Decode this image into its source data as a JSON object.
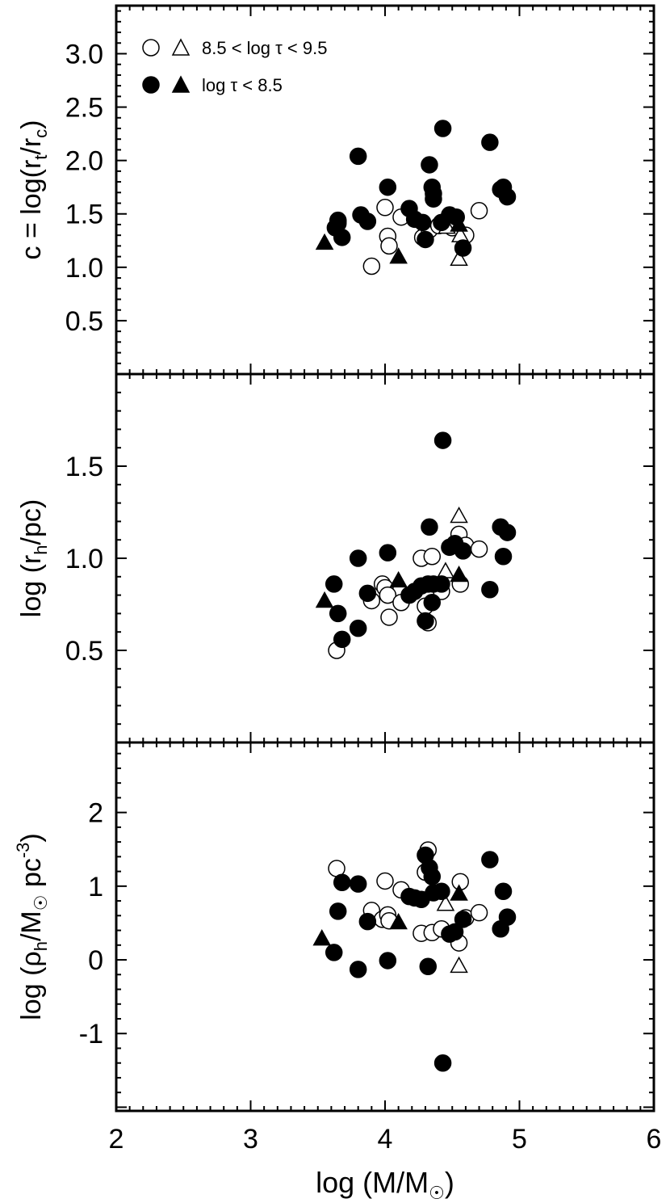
{
  "figure": {
    "xlabel": "log (M/M",
    "xlabel_sym": "☉",
    "xlabel_close": ")"
  },
  "legend": {
    "open_label": "8.5 < log τ < 9.5",
    "filled_label": "log τ < 8.5"
  },
  "chart_data": [
    {
      "type": "scatter",
      "panel": "top",
      "ylabel": "c = log(r_t/r_c)",
      "xlim": [
        2,
        6
      ],
      "ylim": [
        0,
        3.45
      ],
      "yticks": [
        0.5,
        1.0,
        1.5,
        2.0,
        2.5,
        3.0
      ],
      "ytick_labels": [
        "0.5",
        "1.0",
        "1.5",
        "2.0",
        "2.5",
        "3.0"
      ],
      "legend_position": "top-left",
      "series": [
        {
          "name": "8.5 < log τ < 9.5",
          "marker": "circle",
          "fill": "open",
          "points": [
            [
              3.65,
              1.43
            ],
            [
              3.9,
              1.01
            ],
            [
              4.0,
              1.56
            ],
            [
              4.02,
              1.29
            ],
            [
              4.03,
              1.2
            ],
            [
              4.12,
              1.47
            ],
            [
              4.28,
              1.28
            ],
            [
              4.33,
              1.35
            ],
            [
              4.4,
              1.39
            ],
            [
              4.45,
              1.43
            ],
            [
              4.5,
              1.37
            ],
            [
              4.6,
              1.3
            ],
            [
              4.7,
              1.53
            ]
          ]
        },
        {
          "name": "8.5 < log τ < 9.5",
          "marker": "triangle",
          "fill": "open",
          "points": [
            [
              4.46,
              1.38
            ],
            [
              4.55,
              1.08
            ],
            [
              4.56,
              1.3
            ]
          ]
        },
        {
          "name": "log τ < 8.5",
          "marker": "circle",
          "fill": "filled",
          "points": [
            [
              3.63,
              1.37
            ],
            [
              3.65,
              1.41
            ],
            [
              3.65,
              1.44
            ],
            [
              3.68,
              1.28
            ],
            [
              3.8,
              2.04
            ],
            [
              3.82,
              1.49
            ],
            [
              3.87,
              1.43
            ],
            [
              4.02,
              1.75
            ],
            [
              4.18,
              1.55
            ],
            [
              4.22,
              1.45
            ],
            [
              4.28,
              1.42
            ],
            [
              4.3,
              1.26
            ],
            [
              4.33,
              1.96
            ],
            [
              4.35,
              1.75
            ],
            [
              4.36,
              1.69
            ],
            [
              4.36,
              1.64
            ],
            [
              4.42,
              1.42
            ],
            [
              4.43,
              2.3
            ],
            [
              4.48,
              1.49
            ],
            [
              4.53,
              1.47
            ],
            [
              4.58,
              1.18
            ],
            [
              4.78,
              2.17
            ],
            [
              4.86,
              1.73
            ],
            [
              4.88,
              1.75
            ],
            [
              4.91,
              1.66
            ]
          ]
        },
        {
          "name": "log τ < 8.5",
          "marker": "triangle",
          "fill": "filled",
          "points": [
            [
              3.55,
              1.23
            ],
            [
              4.1,
              1.1
            ],
            [
              4.55,
              1.4
            ]
          ]
        }
      ]
    },
    {
      "type": "scatter",
      "panel": "middle",
      "ylabel": "log (r_h/pc)",
      "xlim": [
        2,
        6
      ],
      "ylim": [
        0,
        2.0
      ],
      "yticks": [
        0.5,
        1.0,
        1.5
      ],
      "ytick_labels": [
        "0.5",
        "1.0",
        "1.5"
      ],
      "series": [
        {
          "name": "8.5 < log τ < 9.5",
          "marker": "circle",
          "fill": "open",
          "points": [
            [
              3.64,
              0.5
            ],
            [
              3.9,
              0.77
            ],
            [
              3.98,
              0.86
            ],
            [
              4.0,
              0.84
            ],
            [
              4.02,
              0.8
            ],
            [
              4.03,
              0.68
            ],
            [
              4.12,
              0.76
            ],
            [
              4.27,
              1.0
            ],
            [
              4.3,
              0.74
            ],
            [
              4.32,
              0.65
            ],
            [
              4.35,
              1.01
            ],
            [
              4.42,
              0.82
            ],
            [
              4.55,
              1.13
            ],
            [
              4.56,
              0.86
            ],
            [
              4.6,
              1.07
            ],
            [
              4.7,
              1.05
            ]
          ]
        },
        {
          "name": "8.5 < log τ < 9.5",
          "marker": "triangle",
          "fill": "open",
          "points": [
            [
              4.45,
              0.93
            ],
            [
              4.55,
              1.23
            ]
          ]
        },
        {
          "name": "log τ < 8.5",
          "marker": "circle",
          "fill": "filled",
          "points": [
            [
              3.62,
              0.86
            ],
            [
              3.65,
              0.7
            ],
            [
              3.68,
              0.56
            ],
            [
              3.8,
              1.0
            ],
            [
              3.8,
              0.62
            ],
            [
              3.87,
              0.81
            ],
            [
              4.02,
              1.03
            ],
            [
              4.18,
              0.8
            ],
            [
              4.22,
              0.82
            ],
            [
              4.27,
              0.85
            ],
            [
              4.3,
              0.66
            ],
            [
              4.32,
              0.86
            ],
            [
              4.33,
              1.17
            ],
            [
              4.35,
              0.76
            ],
            [
              4.36,
              0.86
            ],
            [
              4.42,
              0.86
            ],
            [
              4.43,
              1.64
            ],
            [
              4.48,
              1.06
            ],
            [
              4.52,
              1.08
            ],
            [
              4.58,
              1.04
            ],
            [
              4.78,
              0.83
            ],
            [
              4.86,
              1.17
            ],
            [
              4.88,
              1.01
            ],
            [
              4.91,
              1.14
            ]
          ]
        },
        {
          "name": "log τ < 8.5",
          "marker": "triangle",
          "fill": "filled",
          "points": [
            [
              3.55,
              0.77
            ],
            [
              4.1,
              0.88
            ],
            [
              4.55,
              0.91
            ]
          ]
        }
      ]
    },
    {
      "type": "scatter",
      "panel": "bottom",
      "ylabel": "log (ρ_h/M☉ pc^-3)",
      "xlim": [
        2,
        6
      ],
      "ylim": [
        -2.05,
        2.95
      ],
      "yticks": [
        -1,
        0,
        1,
        2
      ],
      "ytick_labels": [
        "-1",
        "0",
        "1",
        "2"
      ],
      "series": [
        {
          "name": "8.5 < log τ < 9.5",
          "marker": "circle",
          "fill": "open",
          "points": [
            [
              3.64,
              1.24
            ],
            [
              3.9,
              0.67
            ],
            [
              3.98,
              0.55
            ],
            [
              4.0,
              1.07
            ],
            [
              4.02,
              0.61
            ],
            [
              4.03,
              0.53
            ],
            [
              4.12,
              0.95
            ],
            [
              4.27,
              0.36
            ],
            [
              4.3,
              1.19
            ],
            [
              4.32,
              1.49
            ],
            [
              4.35,
              0.37
            ],
            [
              4.42,
              0.42
            ],
            [
              4.55,
              0.23
            ],
            [
              4.56,
              1.06
            ],
            [
              4.6,
              0.57
            ],
            [
              4.7,
              0.64
            ]
          ]
        },
        {
          "name": "8.5 < log τ < 9.5",
          "marker": "triangle",
          "fill": "open",
          "points": [
            [
              4.45,
              0.76
            ],
            [
              4.55,
              -0.08
            ]
          ]
        },
        {
          "name": "log τ < 8.5",
          "marker": "circle",
          "fill": "filled",
          "points": [
            [
              3.62,
              0.1
            ],
            [
              3.65,
              0.66
            ],
            [
              3.68,
              1.05
            ],
            [
              3.8,
              1.03
            ],
            [
              3.8,
              -0.13
            ],
            [
              3.87,
              0.52
            ],
            [
              4.02,
              -0.01
            ],
            [
              4.18,
              0.86
            ],
            [
              4.22,
              0.84
            ],
            [
              4.27,
              0.82
            ],
            [
              4.3,
              1.42
            ],
            [
              4.32,
              -0.09
            ],
            [
              4.33,
              1.25
            ],
            [
              4.35,
              1.13
            ],
            [
              4.36,
              0.91
            ],
            [
              4.42,
              0.93
            ],
            [
              4.43,
              -1.4
            ],
            [
              4.48,
              0.35
            ],
            [
              4.52,
              0.38
            ],
            [
              4.58,
              0.55
            ],
            [
              4.78,
              1.36
            ],
            [
              4.86,
              0.42
            ],
            [
              4.88,
              0.93
            ],
            [
              4.91,
              0.58
            ]
          ]
        },
        {
          "name": "log τ < 8.5",
          "marker": "triangle",
          "fill": "filled",
          "points": [
            [
              3.53,
              0.29
            ],
            [
              4.1,
              0.51
            ],
            [
              4.55,
              0.9
            ]
          ]
        }
      ]
    }
  ],
  "xaxis": {
    "ticks": [
      2,
      3,
      4,
      5,
      6
    ],
    "tick_labels": [
      "2",
      "3",
      "4",
      "5",
      "6"
    ]
  }
}
